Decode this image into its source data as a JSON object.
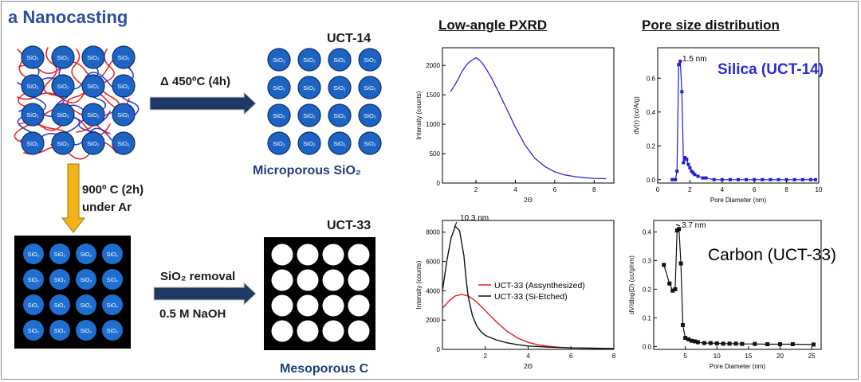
{
  "header": {
    "title": "a Nanocasting"
  },
  "steps": {
    "heat_air": "Δ 450ºC (4h)",
    "heat_ar_line1": "900º C (2h)",
    "heat_ar_line2": "under Ar",
    "removal_line1": "SiO₂ removal",
    "removal_line2": "0.5 M NaOH"
  },
  "labels": {
    "uct14": "UCT-14",
    "uct33": "UCT-33",
    "microporous": "Microporous SiO₂",
    "mesoporous": "Mesoporous C",
    "sio2": "SiO₂"
  },
  "sections": {
    "pxrd": "Low-angle PXRD",
    "psd": "Pore size distribution"
  },
  "colors": {
    "silica_blue": "#1c63c4",
    "navy": "#1f3f7a",
    "arrow_gold": "#f2b318",
    "arrow_navy": "#203864"
  },
  "chart_data": [
    {
      "id": "pxrd-silica",
      "type": "line",
      "xlabel": "2Θ",
      "ylabel": "Intensity (counts)",
      "xlim": [
        0.3,
        9
      ],
      "ylim": [
        0,
        2300
      ],
      "xticks": [
        2,
        4,
        6,
        8
      ],
      "yticks": [
        0,
        500,
        1000,
        1500,
        2000
      ],
      "series": [
        {
          "name": "UCT-14",
          "color": "#2b2bd6",
          "x": [
            0.7,
            0.9,
            1.1,
            1.3,
            1.5,
            1.7,
            1.9,
            2.0,
            2.1,
            2.3,
            2.5,
            2.8,
            3.1,
            3.5,
            4.0,
            4.5,
            5.0,
            5.5,
            6.0,
            6.5,
            7.0,
            7.5,
            8.0,
            8.6
          ],
          "y": [
            1550,
            1650,
            1770,
            1900,
            2000,
            2070,
            2110,
            2130,
            2110,
            2050,
            1950,
            1780,
            1580,
            1300,
            950,
            640,
            420,
            280,
            190,
            140,
            110,
            90,
            80,
            75
          ]
        }
      ]
    },
    {
      "id": "psd-silica",
      "type": "line",
      "title": "Silica (UCT-14)",
      "annotation": "1.5 nm",
      "xlabel": "Pore Diameter (nm)",
      "ylabel": "dV(r) (cc/A/g)",
      "xlim": [
        0,
        10
      ],
      "ylim": [
        -0.02,
        0.78
      ],
      "xticks": [
        0,
        2,
        4,
        6,
        8,
        10
      ],
      "yticks": [
        0.0,
        0.2,
        0.4,
        0.6
      ],
      "series": [
        {
          "name": "UCT-14",
          "color": "#1f1fd0",
          "x": [
            0.9,
            1.1,
            1.2,
            1.3,
            1.4,
            1.5,
            1.6,
            1.7,
            1.8,
            1.9,
            2.0,
            2.1,
            2.2,
            2.3,
            2.5,
            2.8,
            3.0,
            3.5,
            4.0,
            4.5,
            5.0,
            5.5,
            6.0,
            6.5,
            7.0,
            7.5,
            8.0,
            8.5,
            9.0,
            9.5,
            9.8
          ],
          "y": [
            0.0,
            0.0,
            0.05,
            0.68,
            0.7,
            0.52,
            0.1,
            0.13,
            0.12,
            0.09,
            0.07,
            0.05,
            0.04,
            0.03,
            0.02,
            0.01,
            0.01,
            0.0,
            0.0,
            0.0,
            0.0,
            0.0,
            0.0,
            0.0,
            0.0,
            0.0,
            0.0,
            0.0,
            0.0,
            0.0,
            0.0
          ]
        }
      ]
    },
    {
      "id": "pxrd-carbon",
      "type": "line",
      "annotation": "10.3 nm",
      "xlabel": "2Θ",
      "ylabel": "Intensity (counts)",
      "xlim": [
        0,
        8
      ],
      "ylim": [
        0,
        8800
      ],
      "xticks": [
        2,
        4,
        6,
        8
      ],
      "yticks": [
        0,
        2000,
        4000,
        6000,
        8000
      ],
      "series": [
        {
          "name": "UCT-33 (Assynthesized)",
          "color": "#e02020",
          "x": [
            0.0,
            0.3,
            0.6,
            0.9,
            1.2,
            1.5,
            1.8,
            2.1,
            2.5,
            3.0,
            3.5,
            4.0,
            4.5,
            5.0,
            5.5,
            6.0,
            7.0,
            8.0
          ],
          "y": [
            2800,
            3300,
            3650,
            3750,
            3650,
            3350,
            2950,
            2500,
            1900,
            1250,
            780,
            480,
            300,
            200,
            140,
            100,
            70,
            50
          ]
        },
        {
          "name": "UCT-33 (Si-Etched)",
          "color": "#111111",
          "x": [
            0.0,
            0.2,
            0.4,
            0.6,
            0.8,
            1.0,
            1.1,
            1.2,
            1.4,
            1.6,
            1.8,
            2.0,
            2.5,
            3.0,
            3.5,
            4.0,
            5.0,
            6.0,
            7.0,
            8.0
          ],
          "y": [
            4000,
            6000,
            7600,
            8400,
            8100,
            6400,
            4800,
            3600,
            2300,
            1600,
            1200,
            950,
            650,
            450,
            320,
            230,
            150,
            100,
            80,
            60
          ]
        }
      ]
    },
    {
      "id": "psd-carbon",
      "type": "line",
      "title": "Carbon (UCT-33)",
      "annotation": "3.7 nm",
      "xlabel": "Pore Diameter (nm)",
      "ylabel": "dV/dlog(D) (cc/g/nm)",
      "xlim": [
        0,
        26.5
      ],
      "ylim": [
        -0.01,
        0.44
      ],
      "xticks": [
        5,
        10,
        15,
        20,
        25
      ],
      "yticks": [
        0.0,
        0.1,
        0.2,
        0.3,
        0.4
      ],
      "series": [
        {
          "name": "UCT-33",
          "color": "#111111",
          "x": [
            1.6,
            2.5,
            3.0,
            3.4,
            3.7,
            4.0,
            4.3,
            4.6,
            5.0,
            5.5,
            6.0,
            6.5,
            7.0,
            8.0,
            9.0,
            10.0,
            11.0,
            12.0,
            13.0,
            14.0,
            16.0,
            18.0,
            20.0,
            22.0,
            25.3
          ],
          "y": [
            0.285,
            0.22,
            0.195,
            0.2,
            0.405,
            0.41,
            0.29,
            0.075,
            0.03,
            0.025,
            0.02,
            0.018,
            0.015,
            0.012,
            0.012,
            0.011,
            0.01,
            0.01,
            0.01,
            0.009,
            0.009,
            0.008,
            0.008,
            0.008,
            0.007
          ]
        }
      ]
    }
  ]
}
